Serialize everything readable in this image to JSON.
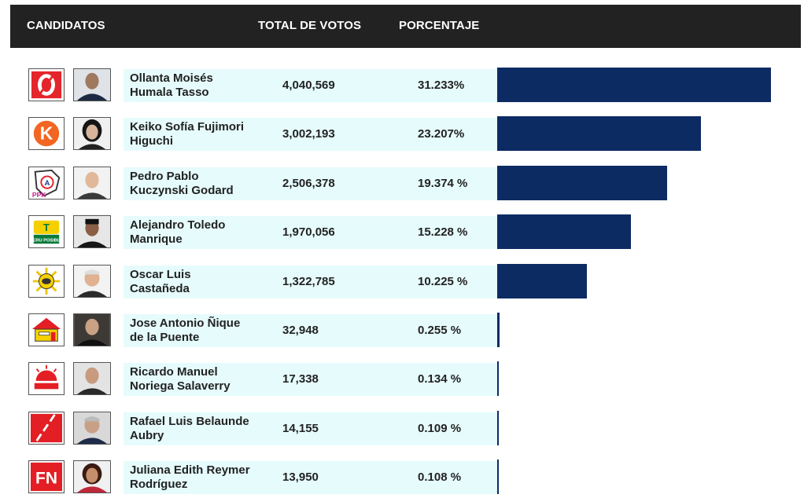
{
  "header": {
    "candidates_label": "CANDIDATOS",
    "votes_label": "TOTAL DE VOTOS",
    "percent_label": "PORCENTAJE"
  },
  "colors": {
    "header_bg": "#222222",
    "bar": "#0d2b63",
    "row_band": "#e6fbfc"
  },
  "chart_data": {
    "type": "bar",
    "orientation": "horizontal",
    "title": "",
    "xlabel": "",
    "ylabel": "",
    "xlim": [
      0,
      35
    ],
    "categories": [
      "Ollanta Moisés Humala Tasso",
      "Keiko Sofía Fujimori Higuchi",
      "Pedro Pablo Kuczynski Godard",
      "Alejandro Toledo Manrique",
      "Oscar Luis Castañeda",
      "Jose Antonio Ñique de la Puente",
      "Ricardo Manuel Noriega Salaverry",
      "Rafael Luis Belaunde Aubry",
      "Juliana Edith Reymer Rodríguez"
    ],
    "values": [
      31.233,
      23.207,
      19.374,
      15.228,
      10.225,
      0.255,
      0.134,
      0.109,
      0.108
    ],
    "rows": [
      {
        "name_line1": "Ollanta Moisés",
        "name_line2": "Humala Tasso",
        "votes": "4,040,569",
        "pct": "31.233%",
        "value": 31.233,
        "logo": "gana-peru-logo-icon",
        "photo": "candidate-photo"
      },
      {
        "name_line1": "Keiko Sofía Fujimori",
        "name_line2": "Higuchi",
        "votes": "3,002,193",
        "pct": "23.207%",
        "value": 23.207,
        "logo": "fuerza-2011-logo-icon",
        "photo": "candidate-photo"
      },
      {
        "name_line1": "Pedro Pablo",
        "name_line2": "Kuczynski Godard",
        "votes": "2,506,378",
        "pct": "19.374 %",
        "value": 19.374,
        "logo": "ppk-logo-icon",
        "photo": "candidate-photo"
      },
      {
        "name_line1": "Alejandro Toledo",
        "name_line2": "Manrique",
        "votes": "1,970,056",
        "pct": "15.228 %",
        "value": 15.228,
        "logo": "peru-posible-logo-icon",
        "photo": "candidate-photo"
      },
      {
        "name_line1": "Oscar Luis",
        "name_line2": "Castañeda",
        "votes": "1,322,785",
        "pct": "10.225 %",
        "value": 10.225,
        "logo": "solidaridad-nacional-logo-icon",
        "photo": "candidate-photo"
      },
      {
        "name_line1": "Jose Antonio Ñique",
        "name_line2": "de la Puente",
        "votes": "32,948",
        "pct": "0.255 %",
        "value": 0.255,
        "logo": "fonavistas-house-logo-icon",
        "photo": "candidate-photo"
      },
      {
        "name_line1": "Ricardo Manuel",
        "name_line2": "Noriega Salaverry",
        "votes": "17,338",
        "pct": "0.134 %",
        "value": 0.134,
        "logo": "despertar-nacional-logo-icon",
        "photo": "candidate-photo"
      },
      {
        "name_line1": "Rafael Luis Belaunde",
        "name_line2": "Aubry",
        "votes": "14,155",
        "pct": "0.109 %",
        "value": 0.109,
        "logo": "adelante-logo-icon",
        "photo": "candidate-photo"
      },
      {
        "name_line1": "Juliana Edith Reymer",
        "name_line2": "Rodríguez",
        "votes": "13,950",
        "pct": "0.108 %",
        "value": 0.108,
        "logo": "fuerza-nacional-logo-icon",
        "photo": "candidate-photo"
      }
    ]
  },
  "logo_text": {
    "k": "K",
    "ppk": "PPK",
    "a": "A",
    "t": "T",
    "peru_posible": "PERU POSIBLE",
    "fn": "FN"
  }
}
